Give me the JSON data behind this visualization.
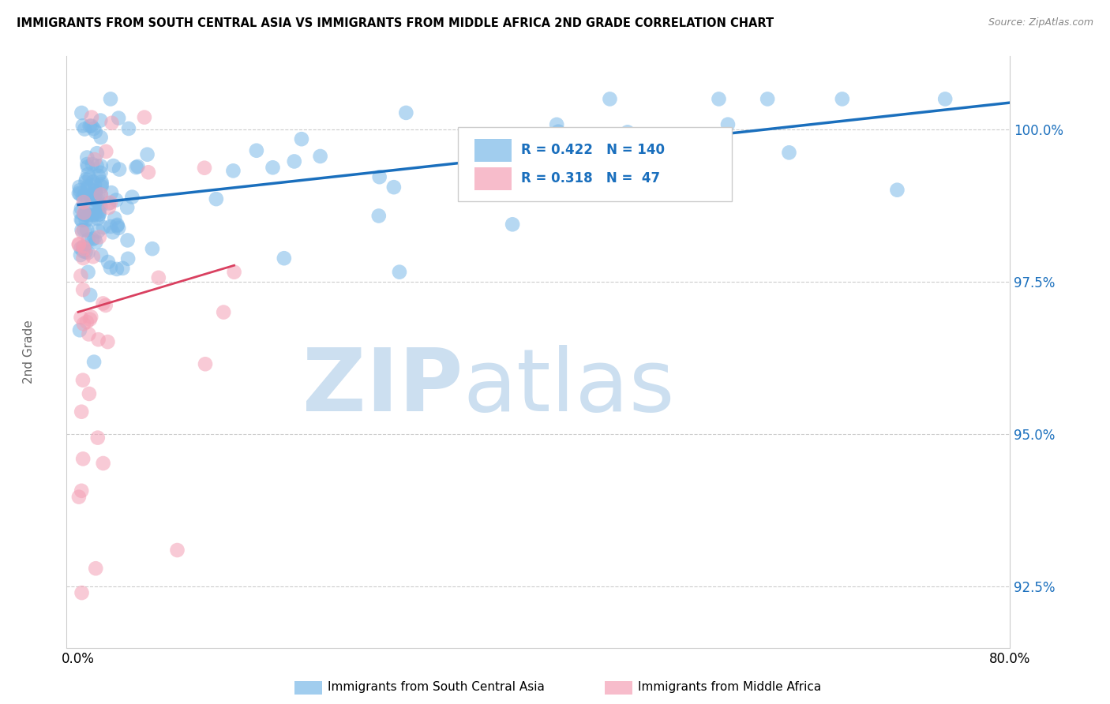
{
  "title": "IMMIGRANTS FROM SOUTH CENTRAL ASIA VS IMMIGRANTS FROM MIDDLE AFRICA 2ND GRADE CORRELATION CHART",
  "source": "Source: ZipAtlas.com",
  "xlabel_blue": "Immigrants from South Central Asia",
  "xlabel_pink": "Immigrants from Middle Africa",
  "ylabel": "2nd Grade",
  "xlim": [
    -1.0,
    80.0
  ],
  "ylim": [
    91.5,
    101.2
  ],
  "yticks": [
    92.5,
    95.0,
    97.5,
    100.0
  ],
  "xticks": [
    0.0,
    20.0,
    40.0,
    60.0,
    80.0
  ],
  "xtick_labels": [
    "0.0%",
    "",
    "",
    "",
    "80.0%"
  ],
  "ytick_labels": [
    "92.5%",
    "95.0%",
    "97.5%",
    "100.0%"
  ],
  "R_blue": 0.422,
  "N_blue": 140,
  "R_pink": 0.318,
  "N_pink": 47,
  "blue_color": "#7ab8e8",
  "pink_color": "#f4a0b5",
  "trendline_blue": "#1a6fbd",
  "trendline_pink": "#d94060",
  "watermark_zip": "ZIP",
  "watermark_atlas": "atlas",
  "watermark_color": "#ccdff0"
}
